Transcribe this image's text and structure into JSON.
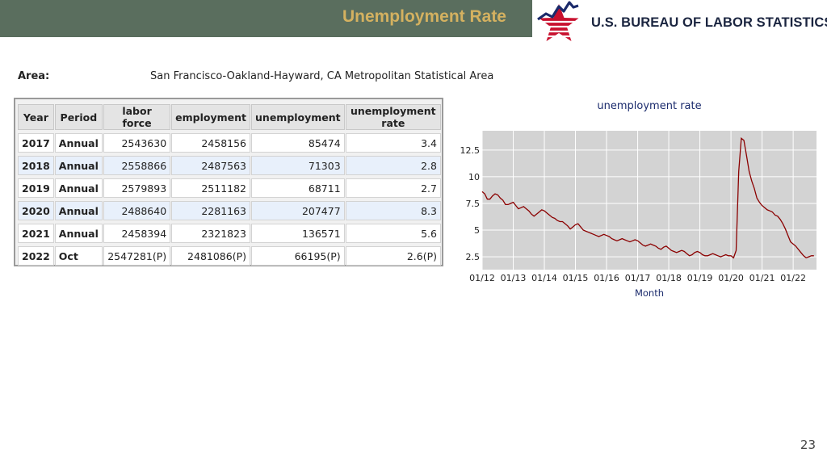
{
  "header": {
    "title": "Unemployment Rate"
  },
  "logo": {
    "text": "U.S. BUREAU OF LABOR STATISTICS"
  },
  "area": {
    "label": "Area:",
    "value": "San Francisco-Oakland-Hayward, CA Metropolitan Statistical Area"
  },
  "table": {
    "headers": [
      "Year",
      "Period",
      "labor force",
      "employment",
      "unemployment",
      "unemployment rate"
    ],
    "rows": [
      [
        "2017",
        "Annual",
        "2543630",
        "2458156",
        "85474",
        "3.4"
      ],
      [
        "2018",
        "Annual",
        "2558866",
        "2487563",
        "71303",
        "2.8"
      ],
      [
        "2019",
        "Annual",
        "2579893",
        "2511182",
        "68711",
        "2.7"
      ],
      [
        "2020",
        "Annual",
        "2488640",
        "2281163",
        "207477",
        "8.3"
      ],
      [
        "2021",
        "Annual",
        "2458394",
        "2321823",
        "136571",
        "5.6"
      ],
      [
        "2022",
        "Oct",
        "2547281(P)",
        "2481086(P)",
        "66195(P)",
        "2.6(P)"
      ]
    ]
  },
  "chart_data": {
    "type": "line",
    "title": "unemployment rate",
    "xlabel": "Month",
    "ylabel": "",
    "ylim": [
      1.3,
      14.3
    ],
    "xlim": [
      0,
      129
    ],
    "yticks": [
      2.5,
      5,
      7.5,
      10,
      12.5
    ],
    "ytick_labels": [
      "2.5",
      "5",
      "7.5",
      "10",
      "12.5"
    ],
    "xtick_labels": [
      "01/12",
      "01/13",
      "01/14",
      "01/15",
      "01/16",
      "01/17",
      "01/18",
      "01/19",
      "01/20",
      "01/21",
      "01/22"
    ],
    "xtick_months": [
      0,
      12,
      24,
      36,
      48,
      60,
      72,
      84,
      96,
      108,
      120
    ],
    "grid": true,
    "colors": {
      "line": "#8b0000",
      "plot_bg": "#d3d3d3",
      "grid": "#ffffff",
      "title": "#1a2a6c"
    },
    "series": [
      {
        "x": [
          0,
          1,
          2,
          3,
          4,
          5,
          6,
          7,
          8,
          9,
          10,
          11,
          12,
          13,
          14,
          15,
          16,
          17,
          18,
          19,
          20,
          21,
          22,
          23,
          24,
          25,
          26,
          27,
          28,
          29,
          30,
          31,
          32,
          33,
          34,
          35,
          36,
          37,
          38,
          39,
          40,
          41,
          42,
          43,
          44,
          45,
          46,
          47,
          48,
          49,
          50,
          51,
          52,
          53,
          54,
          55,
          56,
          57,
          58,
          59,
          60,
          61,
          62,
          63,
          64,
          65,
          66,
          67,
          68,
          69,
          70,
          71,
          72,
          73,
          74,
          75,
          76,
          77,
          78,
          79,
          80,
          81,
          82,
          83,
          84,
          85,
          86,
          87,
          88,
          89,
          90,
          91,
          92,
          93,
          94,
          95,
          96,
          97,
          98,
          99,
          100,
          101,
          102,
          103,
          104,
          105,
          106,
          107,
          108,
          109,
          110,
          111,
          112,
          113,
          114,
          115,
          116,
          117,
          118,
          119,
          120,
          121,
          122,
          123,
          124,
          125,
          126,
          127,
          128
        ],
        "values": [
          8.6,
          8.4,
          7.9,
          7.9,
          8.2,
          8.4,
          8.3,
          8.0,
          7.8,
          7.4,
          7.4,
          7.5,
          7.6,
          7.3,
          7.0,
          7.1,
          7.2,
          7.0,
          6.8,
          6.5,
          6.3,
          6.5,
          6.7,
          6.9,
          6.8,
          6.6,
          6.4,
          6.2,
          6.1,
          5.9,
          5.8,
          5.8,
          5.6,
          5.4,
          5.1,
          5.3,
          5.5,
          5.6,
          5.3,
          5.0,
          4.9,
          4.8,
          4.7,
          4.6,
          4.5,
          4.4,
          4.5,
          4.6,
          4.5,
          4.4,
          4.2,
          4.1,
          4.0,
          4.1,
          4.2,
          4.1,
          4.0,
          3.9,
          4.0,
          4.1,
          4.0,
          3.8,
          3.6,
          3.5,
          3.6,
          3.7,
          3.6,
          3.5,
          3.3,
          3.2,
          3.4,
          3.5,
          3.3,
          3.1,
          3.0,
          2.9,
          3.0,
          3.1,
          3.0,
          2.8,
          2.6,
          2.7,
          2.9,
          3.0,
          2.9,
          2.7,
          2.6,
          2.6,
          2.7,
          2.8,
          2.7,
          2.6,
          2.5,
          2.6,
          2.7,
          2.6,
          2.6,
          2.4,
          3.1,
          10.5,
          13.6,
          13.4,
          12.0,
          10.5,
          9.6,
          8.9,
          8.0,
          7.6,
          7.3,
          7.1,
          6.9,
          6.8,
          6.7,
          6.4,
          6.3,
          6.0,
          5.6,
          5.1,
          4.5,
          3.9,
          3.7,
          3.5,
          3.2,
          2.9,
          2.6,
          2.4,
          2.5,
          2.6,
          2.6
        ]
      }
    ]
  },
  "page": {
    "number": "23"
  }
}
